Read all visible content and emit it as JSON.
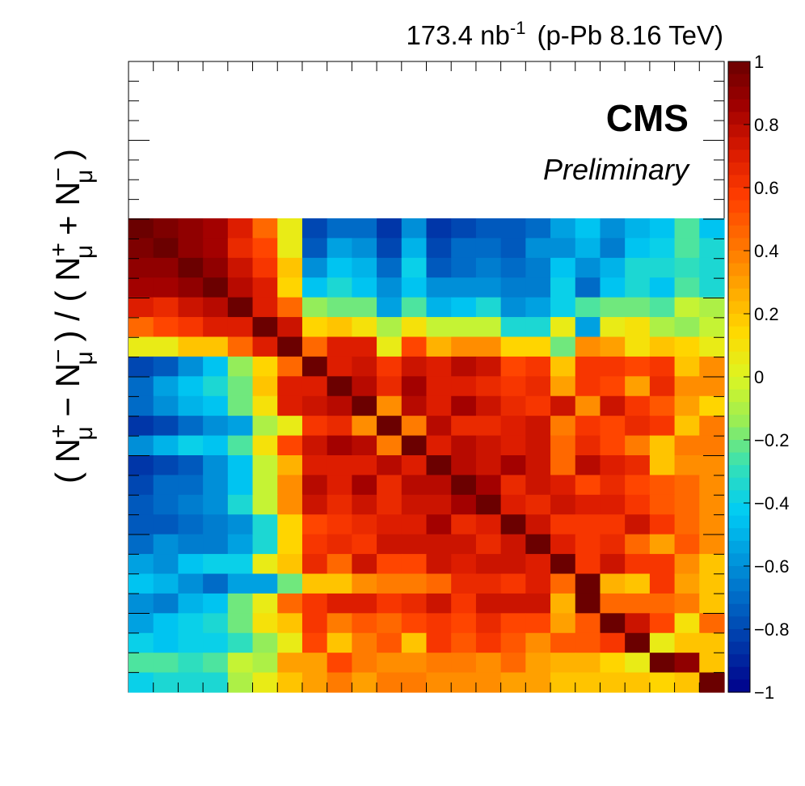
{
  "header": {
    "luminosity": "173.4 nb",
    "luminosity_exp": "-1",
    "dataset": "(p-Pb 8.16 TeV)"
  },
  "badge": {
    "experiment": "CMS",
    "status": "Preliminary"
  },
  "y_axis_label": {
    "a1": "( N",
    "a1sup": "+",
    "a1sub": "μ",
    "a2": " − N",
    "a2sup": "−",
    "a2sub": "μ",
    "a3": " ) / ( N",
    "a3sup": "+",
    "a3sub": "μ",
    "a4": " + N",
    "a4sup": "−",
    "a4sub": "μ",
    "a5": " )"
  },
  "colors": {
    "palette": [
      "#00008b",
      "#0033a6",
      "#0066c4",
      "#0099dd",
      "#00ccf5",
      "#33e0b8",
      "#99ee55",
      "#ddf522",
      "#ffd800",
      "#ffa500",
      "#ff7000",
      "#ff3d00",
      "#d91a00",
      "#a00000",
      "#6b0000"
    ]
  },
  "chart_data": {
    "type": "heatmap",
    "title": "",
    "xlabel": "",
    "ylabel": "( N+μ − N−μ ) / ( N+μ + N−μ )",
    "n_bins": 24,
    "z_range": [
      -1,
      1
    ],
    "colorbar_ticks": [
      {
        "value": 1,
        "label": "1"
      },
      {
        "value": 0.8,
        "label": "0.8"
      },
      {
        "value": 0.6,
        "label": "0.6"
      },
      {
        "value": 0.4,
        "label": "0.4"
      },
      {
        "value": 0.2,
        "label": "0.2"
      },
      {
        "value": 0,
        "label": "0"
      },
      {
        "value": -0.2,
        "label": "−0.2"
      },
      {
        "value": -0.4,
        "label": "−0.4"
      },
      {
        "value": -0.6,
        "label": "−0.6"
      },
      {
        "value": -0.8,
        "label": "−0.8"
      },
      {
        "value": -1,
        "label": "−1"
      }
    ],
    "matrix_rows_top_to_bottom": [
      [
        1.0,
        0.95,
        0.9,
        0.85,
        0.7,
        0.45,
        0.05,
        -0.8,
        -0.7,
        -0.7,
        -0.85,
        -0.6,
        -0.85,
        -0.8,
        -0.75,
        -0.75,
        -0.7,
        -0.55,
        -0.45,
        -0.6,
        -0.5,
        -0.45,
        -0.25,
        -0.45
      ],
      [
        0.95,
        1.0,
        0.9,
        0.85,
        0.65,
        0.55,
        0.05,
        -0.75,
        -0.55,
        -0.6,
        -0.8,
        -0.5,
        -0.8,
        -0.7,
        -0.7,
        -0.75,
        -0.6,
        -0.6,
        -0.5,
        -0.65,
        -0.45,
        -0.4,
        -0.25,
        -0.35
      ],
      [
        0.9,
        0.9,
        1.0,
        0.9,
        0.75,
        0.6,
        0.2,
        -0.6,
        -0.45,
        -0.5,
        -0.7,
        -0.4,
        -0.75,
        -0.7,
        -0.65,
        -0.7,
        -0.65,
        -0.45,
        -0.6,
        -0.5,
        -0.35,
        -0.35,
        -0.3,
        -0.35
      ],
      [
        0.85,
        0.85,
        0.9,
        1.0,
        0.8,
        0.7,
        0.15,
        -0.45,
        -0.35,
        -0.45,
        -0.6,
        -0.45,
        -0.6,
        -0.6,
        -0.6,
        -0.65,
        -0.65,
        -0.4,
        -0.7,
        -0.45,
        -0.35,
        -0.45,
        -0.25,
        -0.35
      ],
      [
        0.7,
        0.65,
        0.75,
        0.8,
        1.0,
        0.7,
        0.45,
        -0.15,
        -0.2,
        -0.2,
        -0.55,
        -0.25,
        -0.5,
        -0.45,
        -0.35,
        -0.6,
        -0.55,
        -0.4,
        -0.25,
        -0.2,
        -0.2,
        -0.25,
        -0.05,
        -0.1
      ],
      [
        0.45,
        0.55,
        0.6,
        0.7,
        0.7,
        1.0,
        0.75,
        0.15,
        0.2,
        0.1,
        -0.1,
        0.1,
        -0.05,
        -0.05,
        -0.05,
        -0.35,
        -0.35,
        0.05,
        -0.55,
        0.05,
        0.1,
        -0.1,
        -0.15,
        -0.05
      ],
      [
        0.05,
        0.05,
        0.2,
        0.2,
        0.45,
        0.7,
        1.0,
        0.45,
        0.7,
        0.7,
        0.05,
        0.55,
        0.25,
        0.35,
        0.35,
        0.15,
        0.15,
        -0.2,
        0.35,
        0.3,
        0.1,
        0.2,
        0.15,
        0.05
      ],
      [
        -0.8,
        -0.75,
        -0.6,
        -0.45,
        -0.15,
        0.15,
        0.45,
        1.0,
        0.7,
        0.75,
        0.6,
        0.75,
        0.7,
        0.8,
        0.75,
        0.55,
        0.6,
        0.2,
        0.6,
        0.6,
        0.55,
        0.6,
        0.2,
        0.35
      ],
      [
        -0.7,
        -0.55,
        -0.45,
        -0.35,
        -0.2,
        0.2,
        0.7,
        0.7,
        1.0,
        0.8,
        0.65,
        0.85,
        0.7,
        0.7,
        0.65,
        0.6,
        0.65,
        0.3,
        0.6,
        0.55,
        0.3,
        0.65,
        0.35,
        0.35
      ],
      [
        -0.7,
        -0.6,
        -0.5,
        -0.45,
        -0.2,
        0.1,
        0.7,
        0.75,
        0.8,
        1.0,
        0.35,
        0.8,
        0.7,
        0.85,
        0.75,
        0.65,
        0.6,
        0.75,
        0.35,
        0.75,
        0.6,
        0.5,
        0.3,
        0.15
      ],
      [
        -0.85,
        -0.8,
        -0.7,
        -0.6,
        -0.55,
        -0.1,
        0.05,
        0.6,
        0.65,
        0.35,
        1.0,
        0.4,
        0.8,
        0.65,
        0.65,
        0.7,
        0.75,
        0.4,
        0.6,
        0.55,
        0.65,
        0.6,
        0.2,
        0.4
      ],
      [
        -0.6,
        -0.5,
        -0.4,
        -0.45,
        -0.25,
        0.1,
        0.55,
        0.75,
        0.85,
        0.8,
        0.4,
        1.0,
        0.7,
        0.8,
        0.75,
        0.7,
        0.75,
        0.45,
        0.65,
        0.55,
        0.4,
        0.2,
        0.4,
        0.4
      ],
      [
        -0.85,
        -0.8,
        -0.75,
        -0.6,
        -0.45,
        -0.05,
        0.25,
        0.7,
        0.7,
        0.7,
        0.8,
        0.7,
        1.0,
        0.8,
        0.75,
        0.85,
        0.75,
        0.45,
        0.8,
        0.7,
        0.65,
        0.2,
        0.35,
        0.35
      ],
      [
        -0.8,
        -0.7,
        -0.7,
        -0.6,
        -0.45,
        -0.05,
        0.35,
        0.8,
        0.7,
        0.85,
        0.65,
        0.8,
        0.8,
        1.0,
        0.85,
        0.65,
        0.75,
        0.7,
        0.55,
        0.65,
        0.55,
        0.5,
        0.45,
        0.35
      ],
      [
        -0.75,
        -0.7,
        -0.65,
        -0.6,
        -0.35,
        -0.05,
        0.35,
        0.75,
        0.65,
        0.75,
        0.65,
        0.75,
        0.75,
        0.85,
        1.0,
        0.7,
        0.65,
        0.75,
        0.7,
        0.7,
        0.6,
        0.5,
        0.45,
        0.35
      ],
      [
        -0.75,
        -0.75,
        -0.7,
        -0.65,
        -0.6,
        -0.35,
        0.15,
        0.55,
        0.6,
        0.65,
        0.7,
        0.7,
        0.85,
        0.65,
        0.7,
        1.0,
        0.75,
        0.6,
        0.6,
        0.6,
        0.75,
        0.6,
        0.45,
        0.35
      ],
      [
        -0.7,
        -0.6,
        -0.65,
        -0.65,
        -0.55,
        -0.35,
        0.15,
        0.6,
        0.65,
        0.6,
        0.75,
        0.75,
        0.75,
        0.75,
        0.65,
        0.75,
        1.0,
        0.7,
        0.6,
        0.65,
        0.45,
        0.3,
        0.5,
        0.35
      ],
      [
        -0.55,
        -0.6,
        -0.45,
        -0.4,
        -0.4,
        0.05,
        0.2,
        0.65,
        0.45,
        0.75,
        0.55,
        0.55,
        0.75,
        0.7,
        0.75,
        0.75,
        0.7,
        1.0,
        0.6,
        0.75,
        0.6,
        0.6,
        0.35,
        0.2
      ],
      [
        -0.45,
        -0.5,
        -0.6,
        -0.7,
        -0.55,
        -0.55,
        -0.2,
        0.2,
        0.2,
        0.35,
        0.4,
        0.4,
        0.45,
        0.65,
        0.65,
        0.6,
        0.7,
        0.45,
        1.0,
        0.25,
        0.2,
        0.6,
        0.3,
        0.2
      ],
      [
        -0.6,
        -0.65,
        -0.5,
        -0.45,
        -0.2,
        0.05,
        0.45,
        0.6,
        0.7,
        0.7,
        0.6,
        0.65,
        0.75,
        0.6,
        0.75,
        0.75,
        0.75,
        0.25,
        1.0,
        0.45,
        0.45,
        0.45,
        0.4,
        0.2
      ],
      [
        -0.55,
        -0.45,
        -0.4,
        -0.35,
        -0.2,
        0.1,
        0.2,
        0.6,
        0.4,
        0.5,
        0.45,
        0.55,
        0.6,
        0.55,
        0.65,
        0.55,
        0.55,
        0.3,
        0.5,
        1.0,
        0.75,
        0.55,
        0.1,
        0.45
      ],
      [
        -0.4,
        -0.45,
        -0.4,
        -0.4,
        -0.3,
        -0.15,
        0.05,
        0.55,
        0.2,
        0.4,
        0.5,
        0.2,
        0.6,
        0.5,
        0.6,
        0.5,
        0.35,
        0.5,
        0.5,
        0.6,
        1.0,
        0.05,
        0.2,
        0.2
      ],
      [
        -0.25,
        -0.25,
        -0.3,
        -0.25,
        -0.05,
        -0.1,
        0.3,
        0.3,
        0.55,
        0.4,
        0.35,
        0.35,
        0.4,
        0.4,
        0.35,
        0.45,
        0.3,
        0.25,
        0.25,
        0.15,
        0.05,
        1.0,
        0.9,
        0.2
      ],
      [
        -0.4,
        -0.35,
        -0.35,
        -0.35,
        -0.1,
        0.05,
        0.2,
        0.3,
        0.4,
        0.3,
        0.4,
        0.4,
        0.35,
        0.35,
        0.35,
        0.3,
        0.3,
        0.2,
        0.2,
        0.2,
        0.2,
        0.15,
        0.2,
        1.0
      ]
    ]
  }
}
